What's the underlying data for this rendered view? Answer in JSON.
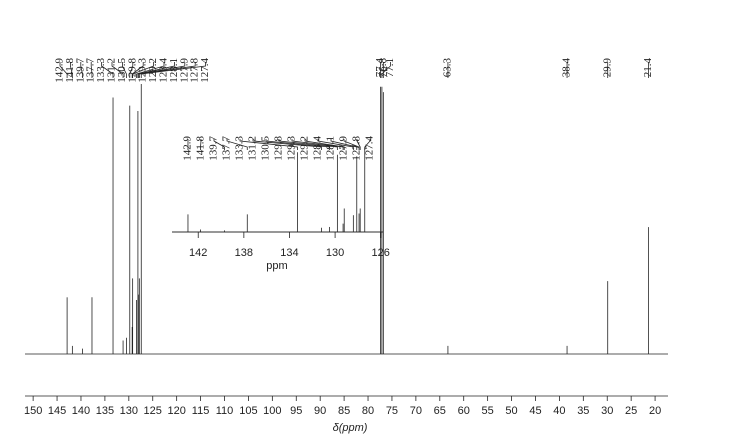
{
  "chart_data": {
    "type": "nmr",
    "xlabel": "δ(ppm)",
    "x": [
      142.9,
      141.8,
      139.7,
      137.7,
      133.3,
      131.2,
      130.5,
      129.8,
      129.3,
      129.2,
      128.4,
      128.1,
      127.9,
      127.8,
      127.4,
      77.4,
      77.1,
      76.8,
      63.3,
      38.4,
      29.9,
      21.4
    ],
    "values": [
      21,
      3,
      2,
      21,
      95,
      5,
      6,
      92,
      10,
      28,
      20,
      90,
      22,
      28,
      100,
      99,
      99,
      97,
      3,
      3,
      27,
      47
    ],
    "color": "#000000",
    "xlim": [
      151.7,
      17.3
    ],
    "ylim": [
      0,
      100
    ],
    "xticks": [
      150,
      145,
      140,
      135,
      130,
      125,
      120,
      115,
      110,
      105,
      100,
      95,
      90,
      85,
      80,
      75,
      70,
      65,
      60,
      55,
      50,
      45,
      40,
      35,
      30,
      25,
      20
    ],
    "inset": {
      "xlabel": "ppm",
      "xlim": [
        144.3,
        125.8
      ],
      "xticks": [
        142,
        138,
        134,
        130,
        126
      ]
    }
  }
}
